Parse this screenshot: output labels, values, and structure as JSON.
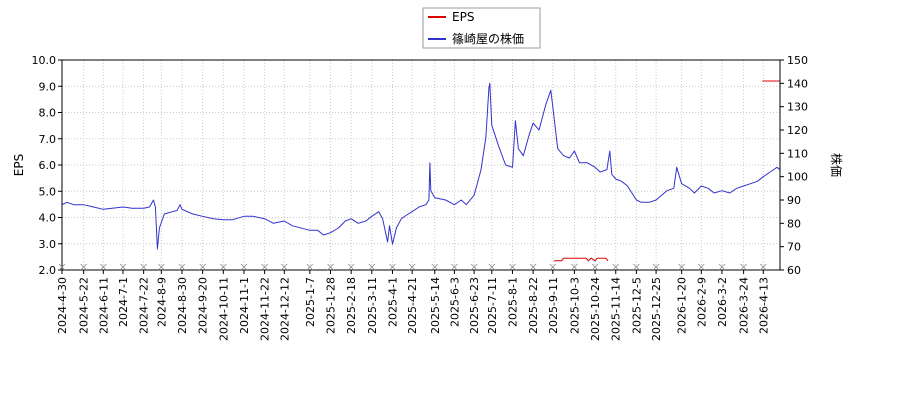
{
  "chart_data": {
    "type": "line",
    "legend": {
      "placement": "top-center",
      "entries": [
        {
          "label": "EPS",
          "color": "#dd0000"
        },
        {
          "label": "篠崎屋の株価",
          "color": "#3333cc"
        }
      ]
    },
    "y_left": {
      "label": "EPS",
      "range": [
        2.0,
        10.0
      ],
      "ticks": [
        "2.0",
        "3.0",
        "4.0",
        "5.0",
        "6.0",
        "7.0",
        "8.0",
        "9.0",
        "10.0"
      ]
    },
    "y_right": {
      "label": "株価",
      "range": [
        60,
        150
      ],
      "ticks": [
        "60",
        "70",
        "80",
        "90",
        "100",
        "110",
        "120",
        "130",
        "140",
        "150"
      ]
    },
    "x_range": [
      "2024-04-30",
      "2026-04-30"
    ],
    "x_ticks": [
      "2024-4-30",
      "2024-5-22",
      "2024-6-11",
      "2024-7-1",
      "2024-7-22",
      "2024-8-9",
      "2024-8-30",
      "2024-9-20",
      "2024-10-11",
      "2024-11-1",
      "2024-11-22",
      "2024-12-12",
      "2025-1-7",
      "2025-1-28",
      "2025-2-18",
      "2025-3-11",
      "2025-4-1",
      "2025-4-21",
      "2025-5-14",
      "2025-6-3",
      "2025-6-23",
      "2025-7-11",
      "2025-8-1",
      "2025-8-22",
      "2025-9-11",
      "2025-10-3",
      "2025-10-24",
      "2025-11-14",
      "2025-12-5",
      "2025-12-25",
      "2026-1-20",
      "2026-2-9",
      "2026-3-2",
      "2026-3-24",
      "2026-4-13"
    ],
    "grid": true,
    "series": [
      {
        "name": "EPS",
        "axis": "left",
        "color": "#dd0000",
        "segments": [
          [
            [
              "2025-9-12",
              2.35
            ],
            [
              "2025-9-20",
              2.35
            ],
            [
              "2025-9-22",
              2.45
            ],
            [
              "2025-10-15",
              2.45
            ],
            [
              "2025-10-17",
              2.35
            ],
            [
              "2025-10-20",
              2.45
            ],
            [
              "2025-10-24",
              2.35
            ],
            [
              "2025-10-26",
              2.45
            ],
            [
              "2025-11-4",
              2.45
            ],
            [
              "2025-11-6",
              2.35
            ]
          ],
          [
            [
              "2026-4-12",
              9.2
            ],
            [
              "2026-4-30",
              9.2
            ]
          ]
        ]
      },
      {
        "name": "篠崎屋の株価",
        "axis": "right",
        "color": "#3333cc",
        "points": [
          [
            "2024-4-30",
            88
          ],
          [
            "2024-5-5",
            89
          ],
          [
            "2024-5-12",
            88
          ],
          [
            "2024-5-22",
            88
          ],
          [
            "2024-6-1",
            87
          ],
          [
            "2024-6-11",
            86
          ],
          [
            "2024-6-20",
            86.5
          ],
          [
            "2024-7-1",
            87
          ],
          [
            "2024-7-10",
            86.5
          ],
          [
            "2024-7-22",
            86.5
          ],
          [
            "2024-7-28",
            87
          ],
          [
            "2024-8-1",
            90
          ],
          [
            "2024-8-3",
            87
          ],
          [
            "2024-8-5",
            69
          ],
          [
            "2024-8-7",
            78
          ],
          [
            "2024-8-12",
            84
          ],
          [
            "2024-8-20",
            85
          ],
          [
            "2024-8-25",
            85.5
          ],
          [
            "2024-8-28",
            88
          ],
          [
            "2024-8-30",
            86
          ],
          [
            "2024-9-10",
            84
          ],
          [
            "2024-9-20",
            83
          ],
          [
            "2024-10-1",
            82
          ],
          [
            "2024-10-11",
            81.5
          ],
          [
            "2024-10-20",
            81.5
          ],
          [
            "2024-11-1",
            83
          ],
          [
            "2024-11-10",
            83
          ],
          [
            "2024-11-22",
            82
          ],
          [
            "2024-12-1",
            80
          ],
          [
            "2024-12-12",
            81
          ],
          [
            "2024-12-20",
            79
          ],
          [
            "2025-1-7",
            77
          ],
          [
            "2025-1-15",
            77
          ],
          [
            "2025-1-21",
            75
          ],
          [
            "2025-1-28",
            76
          ],
          [
            "2025-2-5",
            78
          ],
          [
            "2025-2-12",
            81
          ],
          [
            "2025-2-18",
            82
          ],
          [
            "2025-2-25",
            80
          ],
          [
            "2025-3-5",
            81
          ],
          [
            "2025-3-11",
            83
          ],
          [
            "2025-3-18",
            85
          ],
          [
            "2025-3-22",
            82
          ],
          [
            "2025-3-27",
            72
          ],
          [
            "2025-3-29",
            79
          ],
          [
            "2025-4-1",
            71
          ],
          [
            "2025-4-5",
            78
          ],
          [
            "2025-4-10",
            82
          ],
          [
            "2025-4-17",
            84
          ],
          [
            "2025-4-21",
            85
          ],
          [
            "2025-4-28",
            87
          ],
          [
            "2025-5-5",
            88
          ],
          [
            "2025-5-8",
            90
          ],
          [
            "2025-5-9",
            106
          ],
          [
            "2025-5-10",
            94
          ],
          [
            "2025-5-14",
            91
          ],
          [
            "2025-5-25",
            90
          ],
          [
            "2025-6-3",
            88
          ],
          [
            "2025-6-10",
            90
          ],
          [
            "2025-6-15",
            88
          ],
          [
            "2025-6-23",
            92
          ],
          [
            "2025-6-30",
            103
          ],
          [
            "2025-7-5",
            117
          ],
          [
            "2025-7-8",
            138
          ],
          [
            "2025-7-9",
            140
          ],
          [
            "2025-7-11",
            122
          ],
          [
            "2025-7-18",
            113
          ],
          [
            "2025-7-25",
            105
          ],
          [
            "2025-8-1",
            104
          ],
          [
            "2025-8-4",
            124
          ],
          [
            "2025-8-7",
            112
          ],
          [
            "2025-8-12",
            109
          ],
          [
            "2025-8-18",
            118
          ],
          [
            "2025-8-22",
            123
          ],
          [
            "2025-8-28",
            120
          ],
          [
            "2025-9-4",
            131
          ],
          [
            "2025-9-9",
            137
          ],
          [
            "2025-9-11",
            130
          ],
          [
            "2025-9-16",
            112
          ],
          [
            "2025-9-22",
            109
          ],
          [
            "2025-9-28",
            108
          ],
          [
            "2025-10-3",
            111
          ],
          [
            "2025-10-8",
            106
          ],
          [
            "2025-10-16",
            106
          ],
          [
            "2025-10-24",
            104
          ],
          [
            "2025-10-29",
            102
          ],
          [
            "2025-11-5",
            103
          ],
          [
            "2025-11-8",
            111
          ],
          [
            "2025-11-10",
            101
          ],
          [
            "2025-11-14",
            99
          ],
          [
            "2025-11-20",
            98
          ],
          [
            "2025-11-26",
            96
          ],
          [
            "2025-12-5",
            90
          ],
          [
            "2025-12-10",
            89
          ],
          [
            "2025-12-18",
            89
          ],
          [
            "2025-12-25",
            90
          ],
          [
            "2026-1-5",
            94
          ],
          [
            "2026-1-12",
            95
          ],
          [
            "2026-1-15",
            104
          ],
          [
            "2026-1-20",
            97
          ],
          [
            "2026-1-28",
            95
          ],
          [
            "2026-2-2",
            93
          ],
          [
            "2026-2-9",
            96
          ],
          [
            "2026-2-16",
            95
          ],
          [
            "2026-2-22",
            93
          ],
          [
            "2026-3-2",
            94
          ],
          [
            "2026-3-10",
            93
          ],
          [
            "2026-3-17",
            95
          ],
          [
            "2026-3-24",
            96
          ],
          [
            "2026-3-31",
            97
          ],
          [
            "2026-4-7",
            98
          ],
          [
            "2026-4-13",
            100
          ],
          [
            "2026-4-20",
            102
          ],
          [
            "2026-4-27",
            104
          ],
          [
            "2026-4-30",
            103
          ]
        ]
      }
    ]
  }
}
